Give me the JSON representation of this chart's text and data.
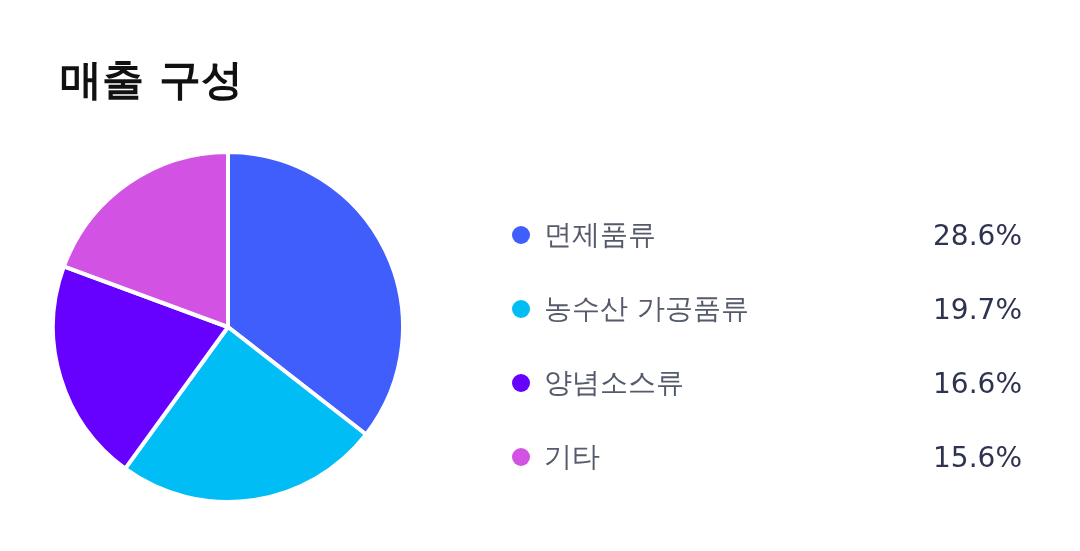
{
  "chart_data": {
    "type": "pie",
    "title": "매출 구성",
    "categories": [
      "면제품류",
      "농수산 가공품류",
      "양념소스류",
      "기타"
    ],
    "values": [
      28.6,
      19.7,
      16.6,
      15.6
    ],
    "value_labels": [
      "28.6%",
      "19.7%",
      "16.6%",
      "15.6%"
    ],
    "colors": [
      "#3f5efb",
      "#00bdf5",
      "#6600ff",
      "#d152e3"
    ],
    "legend": "right"
  }
}
